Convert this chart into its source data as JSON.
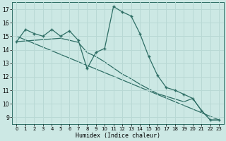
{
  "xlabel": "Humidex (Indice chaleur)",
  "bg_color": "#cce8e4",
  "line_color": "#2e6e65",
  "grid_color": "#b8d8d4",
  "xlim": [
    -0.5,
    23.5
  ],
  "ylim": [
    8.5,
    17.5
  ],
  "yticks": [
    9,
    10,
    11,
    12,
    13,
    14,
    15,
    16,
    17
  ],
  "xticks": [
    0,
    1,
    2,
    3,
    4,
    5,
    6,
    7,
    8,
    9,
    10,
    11,
    12,
    13,
    14,
    15,
    16,
    17,
    18,
    19,
    20,
    21,
    22,
    23
  ],
  "series1_x": [
    0,
    1,
    2,
    3,
    4,
    5,
    6,
    7,
    8,
    9,
    10,
    11,
    12,
    13,
    14,
    15,
    16,
    17,
    18,
    19,
    20,
    21,
    22,
    23
  ],
  "series1_y": [
    14.6,
    15.5,
    15.2,
    15.0,
    15.5,
    15.0,
    15.4,
    14.7,
    12.6,
    13.8,
    14.1,
    17.2,
    16.8,
    16.5,
    15.2,
    13.5,
    12.1,
    11.2,
    11.0,
    10.7,
    10.4,
    9.5,
    8.8,
    8.8
  ],
  "series2_x": [
    0,
    5,
    6,
    7,
    8,
    9,
    10,
    11,
    12,
    13,
    14,
    15,
    16,
    17,
    18,
    19,
    20,
    21,
    22,
    23
  ],
  "series2_y": [
    14.6,
    14.85,
    14.7,
    14.55,
    13.8,
    13.5,
    13.1,
    12.65,
    12.2,
    11.85,
    11.45,
    11.1,
    10.75,
    10.55,
    10.35,
    10.15,
    10.4,
    9.5,
    8.8,
    8.8
  ],
  "trend_x": [
    0,
    23
  ],
  "trend_y": [
    15.0,
    8.8
  ]
}
